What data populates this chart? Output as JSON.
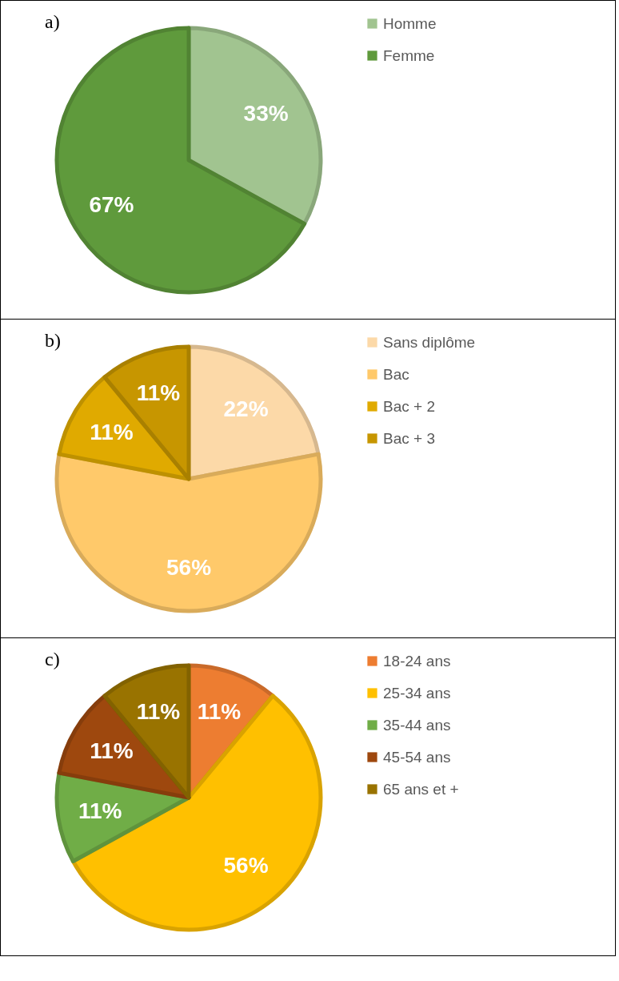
{
  "chart_data": [
    {
      "type": "pie",
      "title": "a)",
      "categories": [
        "Homme",
        "Femme"
      ],
      "values": [
        33,
        67
      ],
      "value_labels": [
        "33%",
        "67%"
      ],
      "colors": [
        "#a1c490",
        "#5f9a3c"
      ],
      "legend": "right"
    },
    {
      "type": "pie",
      "title": "b)",
      "categories": [
        "Sans diplôme",
        "Bac",
        "Bac + 2",
        "Bac + 3"
      ],
      "values": [
        22,
        56,
        11,
        11
      ],
      "value_labels": [
        "22%",
        "56%",
        "11%",
        "11%"
      ],
      "colors": [
        "#fcd9a8",
        "#ffc96a",
        "#e0aa00",
        "#c79600"
      ],
      "legend": "right"
    },
    {
      "type": "pie",
      "title": "c)",
      "categories": [
        "18-24 ans",
        "25-34 ans",
        "35-44 ans",
        "45-54 ans",
        "65 ans et +"
      ],
      "values": [
        11,
        56,
        11,
        11,
        11
      ],
      "value_labels": [
        "11%",
        "56%",
        "11%",
        "11%",
        "11%"
      ],
      "colors": [
        "#ed7d31",
        "#ffc000",
        "#70ad47",
        "#9e480e",
        "#997300"
      ],
      "legend": "right"
    }
  ]
}
